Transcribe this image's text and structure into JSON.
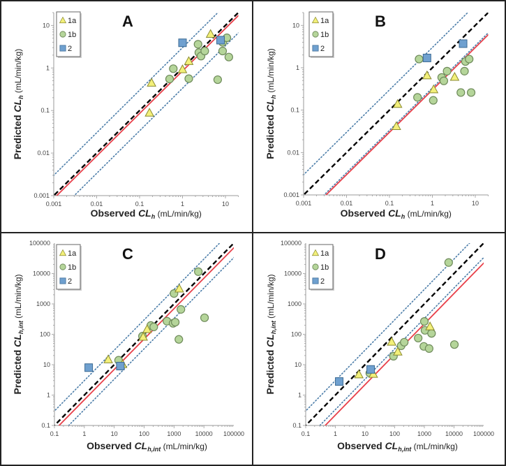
{
  "figure": {
    "legend_entries": [
      "1a",
      "1b",
      "2"
    ],
    "colors": {
      "series_1a_fill": "#f3f07a",
      "series_1a_stroke": "#8a8a30",
      "series_1b_fill": "#b5d59a",
      "series_1b_stroke": "#6e8a5a",
      "series_2_fill": "#6fa0cf",
      "series_2_stroke": "#3d6b94",
      "unity_line": "#000000",
      "fit_line": "#e8404a",
      "fold_lines": "#4a7ca8"
    }
  },
  "chart_data": [
    {
      "panel": "A",
      "type": "scatter",
      "xscale": "log",
      "yscale": "log",
      "xlabel": "Observed CL",
      "xlabel_sub": "h",
      "ylabel": "Predicted CL",
      "ylabel_sub": "h",
      "unit": "(mL/min/kg)",
      "xlim": [
        0.001,
        20
      ],
      "ylim": [
        0.001,
        20
      ],
      "xticks": [
        "0.001",
        "0.01",
        "0.1",
        "1",
        "10"
      ],
      "yticks": [
        "0.001",
        "0.01",
        "0.1",
        "1",
        "10"
      ],
      "legend": "top-left",
      "lines": {
        "unity": 1,
        "fit_factor": 0.85,
        "fold": 3
      },
      "series": [
        {
          "name": "1a",
          "marker": "triangle",
          "points": [
            [
              0.19,
              0.45
            ],
            [
              0.17,
              0.089
            ],
            [
              1.0,
              0.93
            ],
            [
              1.4,
              1.45
            ],
            [
              4.5,
              6.3
            ]
          ]
        },
        {
          "name": "1b",
          "marker": "circle",
          "points": [
            [
              0.61,
              0.96
            ],
            [
              0.5,
              0.55
            ],
            [
              1.4,
              0.56
            ],
            [
              2.3,
              3.6
            ],
            [
              2.4,
              2.3
            ],
            [
              2.7,
              1.9
            ],
            [
              3.3,
              2.5
            ],
            [
              6.6,
              0.53
            ],
            [
              8.6,
              2.5
            ],
            [
              8.6,
              4.0
            ],
            [
              10.8,
              5.1
            ],
            [
              12,
              1.8
            ]
          ]
        },
        {
          "name": "2",
          "marker": "square",
          "points": [
            [
              1.0,
              3.9
            ],
            [
              7.7,
              4.5
            ]
          ]
        }
      ]
    },
    {
      "panel": "B",
      "type": "scatter",
      "xscale": "log",
      "yscale": "log",
      "xlabel": "Observed CL",
      "xlabel_sub": "h",
      "ylabel": "Predicted CL",
      "ylabel_sub": "h",
      "unit": "(mL/min/kg)",
      "xlim": [
        0.001,
        20
      ],
      "ylim": [
        0.001,
        20
      ],
      "xticks": [
        "0.001",
        "0.01",
        "0.1",
        "1",
        "10"
      ],
      "yticks": [
        "0.001",
        "0.01",
        "0.1",
        "1",
        "10"
      ],
      "legend": "top-left",
      "lines": {
        "unity": 1,
        "fit_factor": 0.3,
        "fold": 3
      },
      "series": [
        {
          "name": "1a",
          "marker": "triangle",
          "points": [
            [
              0.155,
              0.14
            ],
            [
              0.145,
              0.042
            ],
            [
              0.75,
              0.66
            ],
            [
              1.07,
              0.31
            ],
            [
              3.3,
              0.61
            ]
          ]
        },
        {
          "name": "1b",
          "marker": "circle",
          "points": [
            [
              0.49,
              1.6
            ],
            [
              0.45,
              0.2
            ],
            [
              1.05,
              0.17
            ],
            [
              1.65,
              0.59
            ],
            [
              1.85,
              0.49
            ],
            [
              2.2,
              0.83
            ],
            [
              4.6,
              0.26
            ],
            [
              5.6,
              0.83
            ],
            [
              5.9,
              1.4
            ],
            [
              7.2,
              1.6
            ],
            [
              8.0,
              0.26
            ]
          ]
        },
        {
          "name": "2",
          "marker": "square",
          "points": [
            [
              0.75,
              1.7
            ],
            [
              5.2,
              3.7
            ]
          ]
        }
      ]
    },
    {
      "panel": "C",
      "type": "scatter",
      "xscale": "log",
      "yscale": "log",
      "xlabel": "Observed CL",
      "xlabel_sub": "h,int",
      "ylabel": "Predicted CL",
      "ylabel_sub": "h,int",
      "unit": "(mL/min/kg)",
      "xlim": [
        0.1,
        100000
      ],
      "ylim": [
        0.1,
        100000
      ],
      "xticks": [
        "0.1",
        "1",
        "10",
        "100",
        "1000",
        "10000",
        "100000"
      ],
      "yticks": [
        "0.1",
        "1",
        "10",
        "100",
        "1000",
        "10000",
        "100000"
      ],
      "legend": "top-left",
      "lines": {
        "unity": 1,
        "fit_factor": 0.7,
        "fold": 3
      },
      "series": [
        {
          "name": "1a",
          "marker": "triangle",
          "points": [
            [
              6.3,
              15
            ],
            [
              93,
              83
            ],
            [
              126,
              148
            ],
            [
              1500,
              3200
            ],
            [
              19,
              10.5
            ]
          ]
        },
        {
          "name": "1b",
          "marker": "circle",
          "points": [
            [
              14,
              14
            ],
            [
              88,
              87
            ],
            [
              167,
              195
            ],
            [
              210,
              175
            ],
            [
              580,
              270
            ],
            [
              930,
              230
            ],
            [
              1100,
              250
            ],
            [
              1000,
              2200
            ],
            [
              1700,
              660
            ],
            [
              1450,
              68
            ],
            [
              6500,
              11500
            ],
            [
              10500,
              350
            ]
          ]
        },
        {
          "name": "2",
          "marker": "square",
          "points": [
            [
              1.4,
              8
            ],
            [
              16,
              9
            ]
          ]
        }
      ]
    },
    {
      "panel": "D",
      "type": "scatter",
      "xscale": "log",
      "yscale": "log",
      "xlabel": "Observed CL",
      "xlabel_sub": "h,int",
      "ylabel": "Predicted CL",
      "ylabel_sub": "h,int",
      "unit": "(mL/min/kg)",
      "xlim": [
        0.1,
        100000
      ],
      "ylim": [
        0.1,
        100000
      ],
      "xticks": [
        "0.1",
        "1",
        "10",
        "100",
        "1000",
        "10000",
        "100000"
      ],
      "yticks": [
        "0.1",
        "1",
        "10",
        "100",
        "1000",
        "10000",
        "100000"
      ],
      "legend": "top-left",
      "lines": {
        "unity": 1,
        "fit_factor": 0.22,
        "fold": 3
      },
      "series": [
        {
          "name": "1a",
          "marker": "triangle",
          "points": [
            [
              6.2,
              4.8
            ],
            [
              79,
              57
            ],
            [
              127,
              27
            ],
            [
              1550,
              183
            ],
            [
              19,
              5
            ]
          ]
        },
        {
          "name": "1b",
          "marker": "circle",
          "points": [
            [
              14.5,
              5.3
            ],
            [
              91,
              19
            ],
            [
              165,
              42
            ],
            [
              210,
              55
            ],
            [
              620,
              75
            ],
            [
              960,
              40
            ],
            [
              1000,
              265
            ],
            [
              1050,
              135
            ],
            [
              1450,
              34
            ],
            [
              1750,
              107
            ],
            [
              6600,
              23000
            ],
            [
              10300,
              46
            ]
          ]
        },
        {
          "name": "2",
          "marker": "square",
          "points": [
            [
              1.35,
              2.8
            ],
            [
              15.5,
              7
            ]
          ]
        }
      ]
    }
  ]
}
